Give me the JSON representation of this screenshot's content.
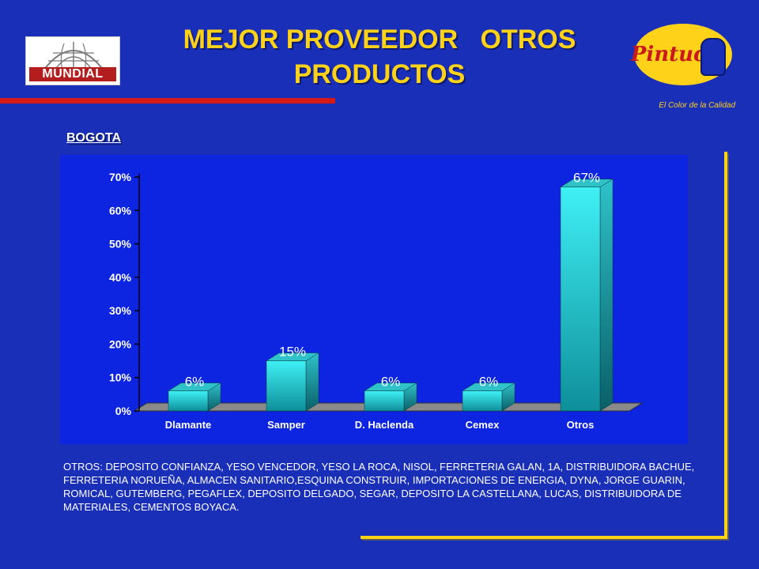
{
  "header": {
    "title_lines": [
      "MEJOR PROVEEDOR   OTROS",
      "PRODUCTOS"
    ],
    "left_logo_text": "MUNDIAL",
    "right_logo_text": "Pintuco",
    "right_logo_tagline": "El Color de la Calidad"
  },
  "section_label": "BOGOTA",
  "colors": {
    "background": "#1a2fb8",
    "chart_panel": "#0d25e0",
    "title": "#ffd21a",
    "bar_front_top": "#3ff0f5",
    "bar_front_bottom": "#0e8f9a",
    "bar_top": "#2fc2c9",
    "bar_side": "#0a5f68",
    "accent_red": "#d51818"
  },
  "chart_data": {
    "type": "bar",
    "categories": [
      "Dlamante",
      "Samper",
      "D. Haclenda",
      "Cemex",
      "Otros"
    ],
    "values": [
      6,
      15,
      6,
      6,
      67
    ],
    "data_labels": [
      "6%",
      "15%",
      "6%",
      "6%",
      "67%"
    ],
    "ylim": [
      0,
      70
    ],
    "yticks": [
      0,
      10,
      20,
      30,
      40,
      50,
      60,
      70
    ],
    "ytick_labels": [
      "0%",
      "10%",
      "20%",
      "30%",
      "40%",
      "50%",
      "60%",
      "70%"
    ],
    "grid": false,
    "legend": "none",
    "style": "3d"
  },
  "note": "OTROS: DEPOSITO CONFIANZA, YESO VENCEDOR, YESO LA ROCA, NISOL, FERRETERIA GALAN, 1A, DISTRIBUIDORA BACHUE, FERRETERIA NORUEÑA, ALMACEN SANITARIO,ESQUINA CONSTRUIR, IMPORTACIONES DE ENERGIA, DYNA, JORGE GUARIN, ROMICAL, GUTEMBERG, PEGAFLEX, DEPOSITO DELGADO, SEGAR, DEPOSITO LA CASTELLANA, LUCAS, DISTRIBUIDORA DE  MATERIALES, CEMENTOS BOYACA."
}
